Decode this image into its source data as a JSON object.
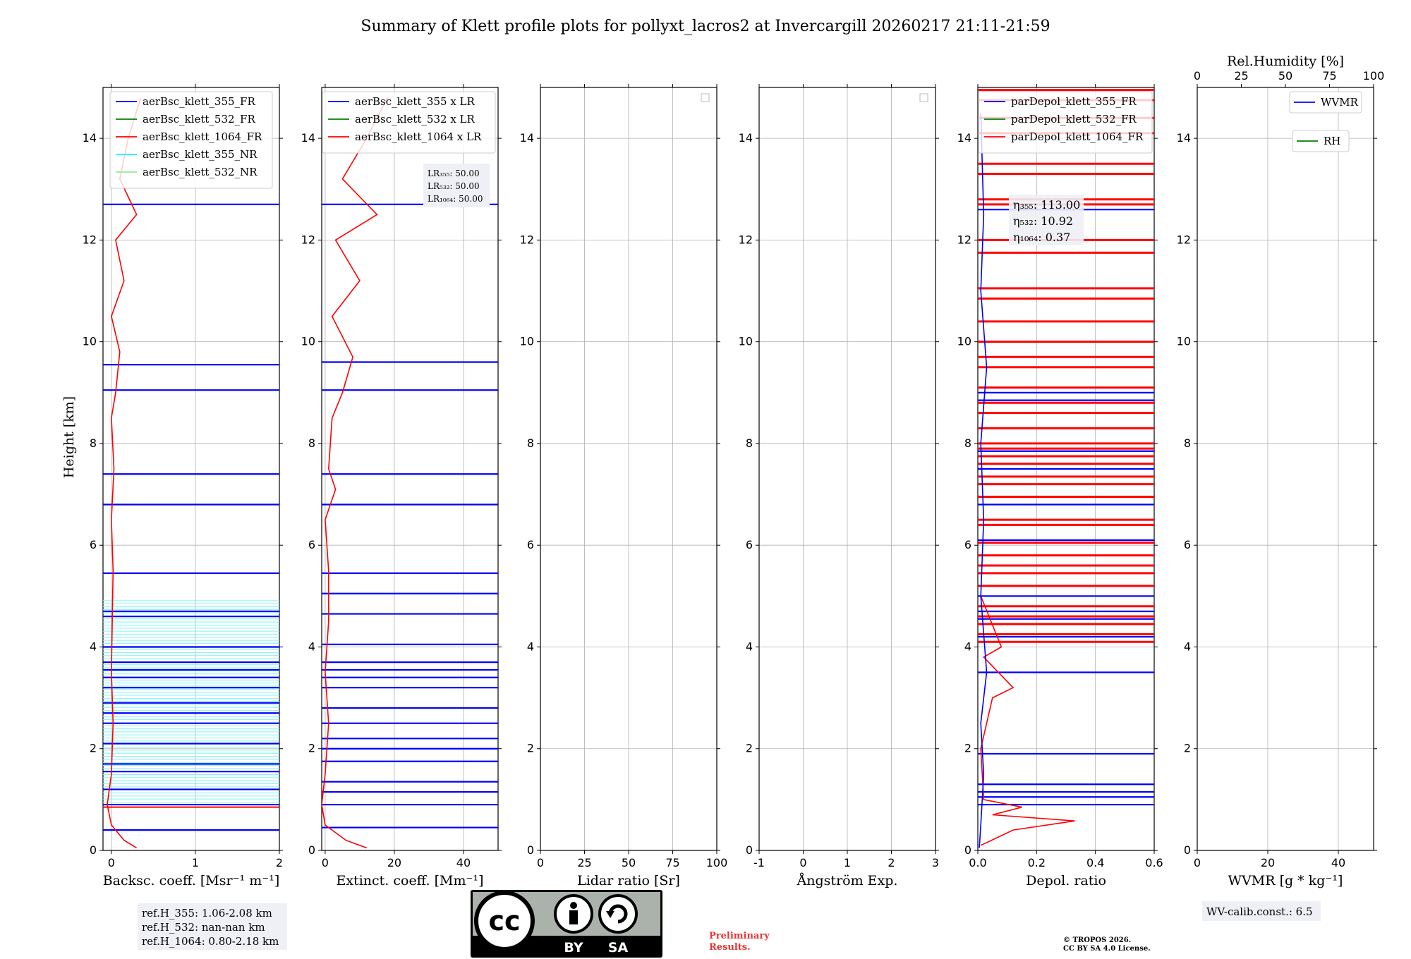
{
  "chart_data": {
    "type": "line",
    "title": "Summary of Klett profile plots for pollyxt_lacros2 at Invercargill 20260217 21:11-21:59",
    "ylabel": "Height [km]",
    "ylim": [
      0,
      15
    ],
    "yticks": [
      0,
      2,
      4,
      6,
      8,
      10,
      12,
      14
    ],
    "grid": true,
    "panels": [
      {
        "id": "bsc",
        "xlabel": "Backsc. coeff. [Msr⁻¹ m⁻¹]",
        "xlim": [
          -0.1,
          2
        ],
        "xticks": [
          0,
          1,
          2
        ],
        "legend_position": "top-right",
        "series": [
          {
            "name": "aerBsc_klett_355_FR",
            "color": "#0000ff"
          },
          {
            "name": "aerBsc_klett_532_FR",
            "color": "#008000"
          },
          {
            "name": "aerBsc_klett_1064_FR",
            "color": "#ff0000"
          },
          {
            "name": "aerBsc_klett_355_NR",
            "color": "#00ffff"
          },
          {
            "name": "aerBsc_klett_532_NR",
            "color": "#90ee90"
          }
        ]
      },
      {
        "id": "ext",
        "xlabel": "Extinct. coeff. [Mm⁻¹]",
        "xlim": [
          -1,
          50
        ],
        "xticks": [
          0,
          20,
          40
        ],
        "legend_position": "top-right",
        "series": [
          {
            "name": "aerBsc_klett_355 x LR",
            "color": "#0000ff"
          },
          {
            "name": "aerBsc_klett_532 x LR",
            "color": "#008000"
          },
          {
            "name": "aerBsc_klett_1064 x LR",
            "color": "#ff0000"
          }
        ],
        "annotation": {
          "lr355": "LR₃₅₅: 50.00",
          "lr532": "LR₅₃₂: 50.00",
          "lr1064": "LR₁₀₆₄: 50.00"
        }
      },
      {
        "id": "lr",
        "xlabel": "Lidar ratio [Sr]",
        "xlim": [
          0,
          100
        ],
        "xticks": [
          0,
          25,
          50,
          75,
          100
        ],
        "legend_position": "top-right",
        "series": []
      },
      {
        "id": "ang",
        "xlabel": "Ångström Exp.",
        "xlim": [
          -1,
          3
        ],
        "xticks": [
          -1,
          0,
          1,
          2,
          3
        ],
        "legend_position": "top-right",
        "series": []
      },
      {
        "id": "dep",
        "xlabel": "Depol. ratio",
        "xlim": [
          0,
          0.6
        ],
        "xticks": [
          0.0,
          0.2,
          0.4,
          0.6
        ],
        "legend_position": "top",
        "series": [
          {
            "name": "parDepol_klett_355_FR",
            "color": "#0000ff"
          },
          {
            "name": "parDepol_klett_532_FR",
            "color": "#008000"
          },
          {
            "name": "parDepol_klett_1064_FR",
            "color": "#ff0000"
          }
        ],
        "annotation": {
          "eta355": "η₃₅₅: 113.00",
          "eta532": "η₅₃₂: 10.92",
          "eta1064": "η₁₀₆₄: 0.37"
        }
      },
      {
        "id": "wv",
        "xlabel": "WVMR [g * kg⁻¹]",
        "xlim": [
          0,
          50
        ],
        "xticks": [
          0,
          20,
          40
        ],
        "top_xlabel": "Rel.Humidity [%]",
        "top_xlim": [
          0,
          100
        ],
        "top_xticks": [
          0,
          25,
          50,
          75,
          100
        ],
        "series": [
          {
            "name": "WVMR",
            "color": "#0000ff"
          },
          {
            "name": "RH",
            "color": "#008000"
          }
        ]
      }
    ],
    "profiles": {
      "bsc_1064": [
        [
          0.3,
          0.05
        ],
        [
          0.15,
          0.2
        ],
        [
          0.0,
          0.5
        ],
        [
          -0.05,
          0.9
        ],
        [
          0.0,
          1.5
        ],
        [
          0.02,
          2.5
        ],
        [
          0.0,
          3.5
        ],
        [
          0.01,
          4.5
        ],
        [
          0.02,
          5.5
        ],
        [
          0.0,
          6.5
        ],
        [
          0.03,
          7.5
        ],
        [
          0.0,
          8.5
        ],
        [
          0.05,
          9.0
        ],
        [
          0.1,
          9.8
        ],
        [
          0.0,
          10.5
        ],
        [
          0.15,
          11.2
        ],
        [
          0.05,
          12.0
        ],
        [
          0.3,
          12.5
        ],
        [
          0.1,
          13.2
        ],
        [
          0.2,
          14.0
        ],
        [
          0.35,
          14.8
        ]
      ],
      "ext_1064": [
        [
          12,
          0.05
        ],
        [
          6,
          0.2
        ],
        [
          0,
          0.5
        ],
        [
          -1,
          0.9
        ],
        [
          0,
          1.5
        ],
        [
          1,
          2.5
        ],
        [
          0,
          3.5
        ],
        [
          1,
          4.5
        ],
        [
          1,
          5.5
        ],
        [
          0,
          6.5
        ],
        [
          3,
          7.1
        ],
        [
          1,
          7.5
        ],
        [
          2,
          8.5
        ],
        [
          5,
          9.0
        ],
        [
          8,
          9.7
        ],
        [
          2,
          10.5
        ],
        [
          10,
          11.2
        ],
        [
          3,
          12.0
        ],
        [
          15,
          12.5
        ],
        [
          5,
          13.2
        ],
        [
          12,
          14.0
        ],
        [
          18,
          14.8
        ]
      ],
      "dep_1064": [
        [
          0.01,
          0.1
        ],
        [
          0.12,
          0.4
        ],
        [
          0.33,
          0.58
        ],
        [
          0.05,
          0.7
        ],
        [
          0.15,
          0.85
        ],
        [
          0.02,
          1.0
        ],
        [
          0.01,
          2.0
        ],
        [
          0.05,
          3.0
        ],
        [
          0.12,
          3.2
        ],
        [
          0.02,
          3.8
        ],
        [
          0.08,
          4.0
        ],
        [
          0.01,
          5.0
        ]
      ],
      "dep_355": [
        [
          0.005,
          0.05
        ],
        [
          0.01,
          0.5
        ],
        [
          0.02,
          1.5
        ],
        [
          0.01,
          2.5
        ],
        [
          0.03,
          3.5
        ],
        [
          0.01,
          5.0
        ],
        [
          0.02,
          6.5
        ],
        [
          0.01,
          8.0
        ],
        [
          0.03,
          9.5
        ],
        [
          0.01,
          11.0
        ],
        [
          0.02,
          12.5
        ],
        [
          0.01,
          14.5
        ]
      ]
    },
    "spikes": {
      "bsc_blue": [
        0.4,
        0.9,
        1.2,
        1.55,
        1.7,
        2.1,
        2.5,
        2.7,
        2.9,
        3.2,
        3.4,
        3.55,
        3.7,
        4.0,
        4.6,
        4.7,
        5.45,
        6.8,
        7.4,
        9.05,
        9.55,
        12.7
      ],
      "bsc_cyan_start": 0.95,
      "bsc_cyan_end": 4.95,
      "ext_blue": [
        0.45,
        0.9,
        1.15,
        1.35,
        1.75,
        2.0,
        2.2,
        2.5,
        2.8,
        3.2,
        3.4,
        3.55,
        3.7,
        4.05,
        4.65,
        5.05,
        5.45,
        6.8,
        7.4,
        9.05,
        9.6,
        12.7
      ],
      "dep_red": [
        4.1,
        4.25,
        4.45,
        4.6,
        4.8,
        5.2,
        5.45,
        5.6,
        5.8,
        6.05,
        6.4,
        6.5,
        6.95,
        7.2,
        7.35,
        7.6,
        7.75,
        7.9,
        8.0,
        8.3,
        8.6,
        8.8,
        9.1,
        9.5,
        9.7,
        10.0,
        10.4,
        10.85,
        11.05,
        11.75,
        12.0,
        12.7,
        12.8,
        13.3,
        13.5,
        14.1,
        14.4,
        14.75,
        14.95
      ],
      "dep_blue": [
        0.9,
        1.05,
        1.15,
        1.3,
        1.9,
        3.5,
        4.2,
        4.55,
        4.7,
        5.0,
        6.1,
        6.8,
        7.5,
        7.85,
        8.85,
        9.0,
        12.6
      ]
    }
  },
  "refh": {
    "l355": "ref.H_355: 1.06-2.08 km",
    "l532": "ref.H_532: nan-nan km",
    "l1064": "ref.H_1064: 0.80-2.18 km"
  },
  "wv_calib": "WV-calib.const.: 6.5",
  "preliminary": {
    "line1": "Preliminary",
    "line2": "Results."
  },
  "copyright": {
    "line1": "© TROPOS 2026.",
    "line2": "CC BY SA 4.0 License."
  },
  "badge": {
    "cc": "cc",
    "by": "BY",
    "sa": "SA"
  }
}
